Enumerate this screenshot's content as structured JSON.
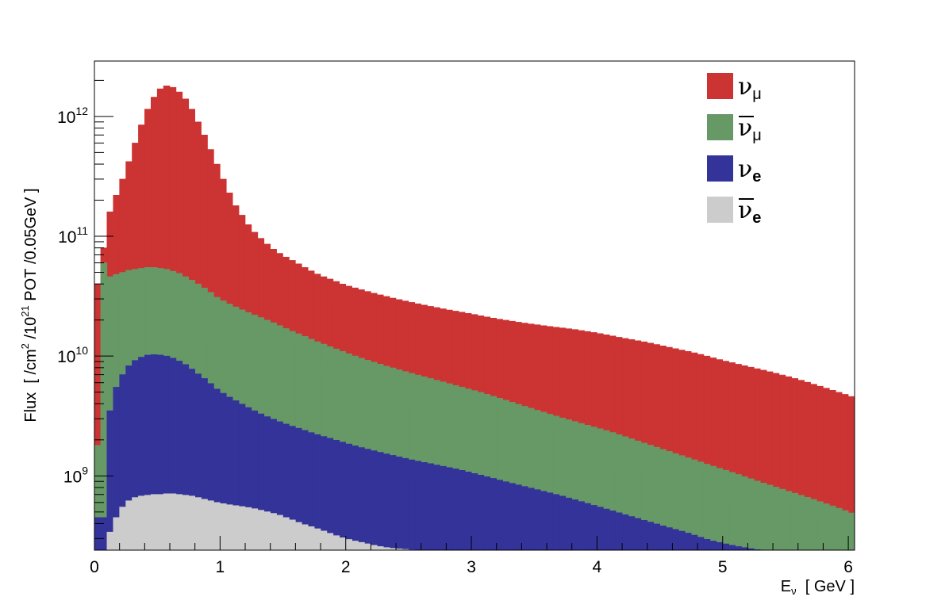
{
  "chart_data": {
    "type": "area",
    "title": "",
    "xlabel": {
      "main": "E",
      "sub": "ν",
      "tail": "  [ GeV ]"
    },
    "ylabel": {
      "pre": "Flux  [ /cm",
      "sup1": "2",
      "mid": " /10",
      "sup2": "21",
      "post": " POT /0.05GeV ]"
    },
    "xlim": [
      0,
      6.05
    ],
    "ylim": [
      240000000.0,
      2900000000000.0
    ],
    "yscale": "log",
    "bin_width": 0.05,
    "x_ticks": [
      0,
      1,
      2,
      3,
      4,
      5,
      6
    ],
    "x_tick_labels": [
      "0",
      "1",
      "2",
      "3",
      "4",
      "5",
      "6"
    ],
    "y_ticks": [
      1000000000.0,
      10000000000.0,
      100000000000.0,
      1000000000000.0
    ],
    "y_tick_labels": [
      {
        "base": "10",
        "exp": "9"
      },
      {
        "base": "10",
        "exp": "10"
      },
      {
        "base": "10",
        "exp": "11"
      },
      {
        "base": "10",
        "exp": "12"
      }
    ],
    "grid": false,
    "legend_position": "top-right",
    "series": [
      {
        "name": "ν_μ",
        "color": "#cc3333",
        "x": [
          0,
          1,
          2,
          3,
          4,
          5,
          6
        ],
        "points": [
          [
            0.025,
            40000000000.0
          ],
          [
            0.075,
            80000000000.0
          ],
          [
            0.125,
            160000000000.0
          ],
          [
            0.175,
            220000000000.0
          ],
          [
            0.225,
            300000000000.0
          ],
          [
            0.275,
            420000000000.0
          ],
          [
            0.325,
            600000000000.0
          ],
          [
            0.375,
            850000000000.0
          ],
          [
            0.425,
            1150000000000.0
          ],
          [
            0.475,
            1450000000000.0
          ],
          [
            0.525,
            1700000000000.0
          ],
          [
            0.575,
            1800000000000.0
          ],
          [
            0.625,
            1750000000000.0
          ],
          [
            0.675,
            1600000000000.0
          ],
          [
            0.725,
            1400000000000.0
          ],
          [
            0.775,
            1150000000000.0
          ],
          [
            0.825,
            900000000000.0
          ],
          [
            0.875,
            700000000000.0
          ],
          [
            0.925,
            530000000000.0
          ],
          [
            0.975,
            400000000000.0
          ],
          [
            1.025,
            300000000000.0
          ],
          [
            1.075,
            230000000000.0
          ],
          [
            1.125,
            180000000000.0
          ],
          [
            1.175,
            150000000000.0
          ],
          [
            1.225,
            125000000000.0
          ],
          [
            1.275,
            108000000000.0
          ],
          [
            1.325,
            96000000000.0
          ],
          [
            1.375,
            86000000000.0
          ],
          [
            1.425,
            78000000000.0
          ],
          [
            1.475,
            72000000000.0
          ],
          [
            1.525,
            67000000000.0
          ],
          [
            1.6,
            61000000000.0
          ],
          [
            1.7,
            53000000000.0
          ],
          [
            1.8,
            47000000000.0
          ],
          [
            1.9,
            43000000000.0
          ],
          [
            2.0,
            39000000000.0
          ],
          [
            2.2,
            34000000000.0
          ],
          [
            2.4,
            30000000000.0
          ],
          [
            2.6,
            27000000000.0
          ],
          [
            2.8,
            24500000000.0
          ],
          [
            3.0,
            22500000000.0
          ],
          [
            3.2,
            20500000000.0
          ],
          [
            3.4,
            19000000000.0
          ],
          [
            3.6,
            17800000000.0
          ],
          [
            3.8,
            16800000000.0
          ],
          [
            4.0,
            15600000000.0
          ],
          [
            4.2,
            14200000000.0
          ],
          [
            4.4,
            13000000000.0
          ],
          [
            4.6,
            11700000000.0
          ],
          [
            4.8,
            10500000000.0
          ],
          [
            5.0,
            9200000000.0
          ],
          [
            5.2,
            8200000000.0
          ],
          [
            5.4,
            7300000000.0
          ],
          [
            5.6,
            6400000000.0
          ],
          [
            5.8,
            5500000000.0
          ],
          [
            6.0,
            4700000000.0
          ],
          [
            6.05,
            4500000000.0
          ]
        ]
      },
      {
        "name": "ν̄_μ",
        "color": "#669966",
        "points": [
          [
            0.025,
            1800000000.0
          ],
          [
            0.075,
            60000000000.0
          ],
          [
            0.125,
            46000000000.0
          ],
          [
            0.175,
            48000000000.0
          ],
          [
            0.225,
            50000000000.0
          ],
          [
            0.275,
            52000000000.0
          ],
          [
            0.325,
            53000000000.0
          ],
          [
            0.375,
            54000000000.0
          ],
          [
            0.425,
            55000000000.0
          ],
          [
            0.475,
            55000000000.0
          ],
          [
            0.525,
            54000000000.0
          ],
          [
            0.575,
            53000000000.0
          ],
          [
            0.625,
            51000000000.0
          ],
          [
            0.675,
            49000000000.0
          ],
          [
            0.725,
            46000000000.0
          ],
          [
            0.775,
            43000000000.0
          ],
          [
            0.825,
            40000000000.0
          ],
          [
            0.875,
            37000000000.0
          ],
          [
            0.925,
            34000000000.0
          ],
          [
            0.975,
            31000000000.0
          ],
          [
            1.05,
            28000000000.0
          ],
          [
            1.15,
            25000000000.0
          ],
          [
            1.25,
            22500000000.0
          ],
          [
            1.35,
            20500000000.0
          ],
          [
            1.45,
            18500000000.0
          ],
          [
            1.55,
            16500000000.0
          ],
          [
            1.65,
            15000000000.0
          ],
          [
            1.75,
            13500000000.0
          ],
          [
            1.85,
            12300000000.0
          ],
          [
            1.95,
            11200000000.0
          ],
          [
            2.1,
            9800000000.0
          ],
          [
            2.3,
            8400000000.0
          ],
          [
            2.5,
            7300000000.0
          ],
          [
            2.7,
            6400000000.0
          ],
          [
            2.9,
            5600000000.0
          ],
          [
            3.1,
            4900000000.0
          ],
          [
            3.3,
            4200000000.0
          ],
          [
            3.5,
            3600000000.0
          ],
          [
            3.7,
            3100000000.0
          ],
          [
            3.9,
            2700000000.0
          ],
          [
            4.1,
            2350000000.0
          ],
          [
            4.3,
            2000000000.0
          ],
          [
            4.5,
            1700000000.0
          ],
          [
            4.7,
            1450000000.0
          ],
          [
            4.9,
            1230000000.0
          ],
          [
            5.1,
            1050000000.0
          ],
          [
            5.3,
            890000000.0
          ],
          [
            5.5,
            760000000.0
          ],
          [
            5.7,
            650000000.0
          ],
          [
            5.9,
            550000000.0
          ],
          [
            6.05,
            480000000.0
          ]
        ]
      },
      {
        "name": "ν_e",
        "color": "#333399",
        "points": [
          [
            0.025,
            450000000.0
          ],
          [
            0.075,
            450000000.0
          ],
          [
            0.125,
            3500000000.0
          ],
          [
            0.175,
            5500000000.0
          ],
          [
            0.225,
            7000000000.0
          ],
          [
            0.275,
            8300000000.0
          ],
          [
            0.325,
            9200000000.0
          ],
          [
            0.375,
            9800000000.0
          ],
          [
            0.425,
            10200000000.0
          ],
          [
            0.475,
            10300000000.0
          ],
          [
            0.525,
            10200000000.0
          ],
          [
            0.575,
            10000000000.0
          ],
          [
            0.625,
            9600000000.0
          ],
          [
            0.675,
            9100000000.0
          ],
          [
            0.725,
            8500000000.0
          ],
          [
            0.775,
            7800000000.0
          ],
          [
            0.825,
            7100000000.0
          ],
          [
            0.875,
            6500000000.0
          ],
          [
            0.925,
            5900000000.0
          ],
          [
            0.975,
            5300000000.0
          ],
          [
            1.05,
            4700000000.0
          ],
          [
            1.15,
            4100000000.0
          ],
          [
            1.25,
            3600000000.0
          ],
          [
            1.35,
            3200000000.0
          ],
          [
            1.45,
            2900000000.0
          ],
          [
            1.55,
            2650000000.0
          ],
          [
            1.65,
            2450000000.0
          ],
          [
            1.75,
            2250000000.0
          ],
          [
            1.85,
            2100000000.0
          ],
          [
            1.95,
            1950000000.0
          ],
          [
            2.1,
            1750000000.0
          ],
          [
            2.3,
            1550000000.0
          ],
          [
            2.5,
            1380000000.0
          ],
          [
            2.7,
            1250000000.0
          ],
          [
            2.9,
            1130000000.0
          ],
          [
            3.1,
            1000000000.0
          ],
          [
            3.3,
            880000000.0
          ],
          [
            3.5,
            780000000.0
          ],
          [
            3.7,
            690000000.0
          ],
          [
            3.9,
            600000000.0
          ],
          [
            4.1,
            520000000.0
          ],
          [
            4.3,
            450000000.0
          ],
          [
            4.5,
            390000000.0
          ],
          [
            4.7,
            340000000.0
          ],
          [
            4.9,
            290000000.0
          ],
          [
            5.1,
            260000000.0
          ],
          [
            5.3,
            240000000.0
          ]
        ]
      },
      {
        "name": "ν̄_e",
        "color": "#cccccc",
        "points": [
          [
            0.075,
            240000000.0
          ],
          [
            0.125,
            340000000.0
          ],
          [
            0.175,
            450000000.0
          ],
          [
            0.225,
            550000000.0
          ],
          [
            0.275,
            620000000.0
          ],
          [
            0.325,
            660000000.0
          ],
          [
            0.375,
            680000000.0
          ],
          [
            0.425,
            690000000.0
          ],
          [
            0.475,
            700000000.0
          ],
          [
            0.525,
            700000000.0
          ],
          [
            0.575,
            710000000.0
          ],
          [
            0.625,
            710000000.0
          ],
          [
            0.675,
            700000000.0
          ],
          [
            0.725,
            690000000.0
          ],
          [
            0.775,
            680000000.0
          ],
          [
            0.825,
            660000000.0
          ],
          [
            0.875,
            640000000.0
          ],
          [
            0.925,
            620000000.0
          ],
          [
            0.975,
            600000000.0
          ],
          [
            1.05,
            580000000.0
          ],
          [
            1.15,
            560000000.0
          ],
          [
            1.25,
            540000000.0
          ],
          [
            1.35,
            510000000.0
          ],
          [
            1.45,
            480000000.0
          ],
          [
            1.55,
            440000000.0
          ],
          [
            1.65,
            400000000.0
          ],
          [
            1.75,
            370000000.0
          ],
          [
            1.85,
            340000000.0
          ],
          [
            1.95,
            310000000.0
          ],
          [
            2.05,
            290000000.0
          ],
          [
            2.15,
            275000000.0
          ],
          [
            2.25,
            260000000.0
          ],
          [
            2.35,
            250000000.0
          ],
          [
            2.45,
            245000000.0
          ],
          [
            2.55,
            240000000.0
          ]
        ]
      }
    ]
  },
  "legend": [
    {
      "symbol": "ν",
      "bar": false,
      "sub": "μ",
      "color": "#cc3333"
    },
    {
      "symbol": "ν",
      "bar": true,
      "sub": "μ",
      "color": "#669966"
    },
    {
      "symbol": "ν",
      "bar": false,
      "sub": "e",
      "color": "#333399"
    },
    {
      "symbol": "ν",
      "bar": true,
      "sub": "e",
      "color": "#cccccc"
    }
  ]
}
